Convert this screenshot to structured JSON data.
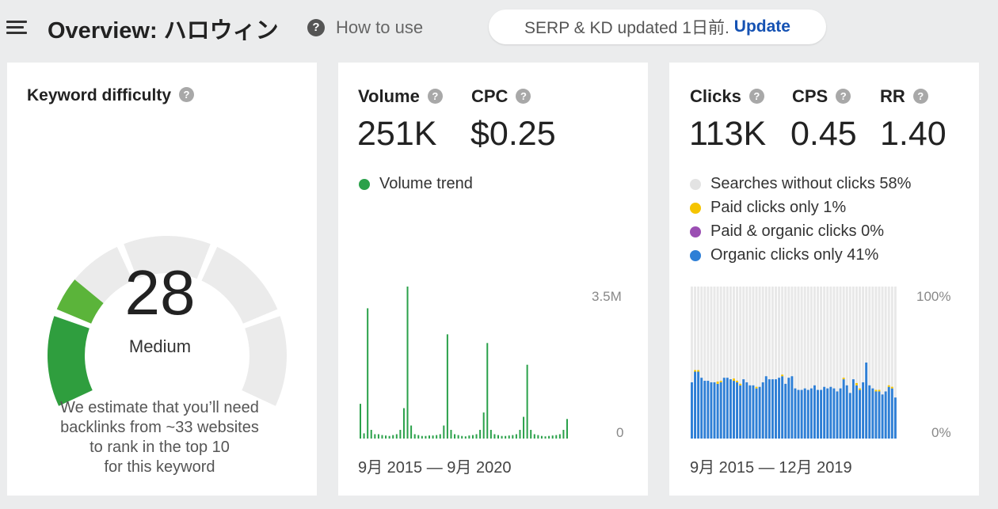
{
  "header": {
    "title": "Overview: ハロウィン",
    "help_label": "How to use",
    "help_icon": "question-icon",
    "update_status": "SERP & KD updated 1日前.",
    "update_label": "Update",
    "update_color": "#1552b3"
  },
  "kd": {
    "title": "Keyword difficulty",
    "score": "28",
    "level": "Medium",
    "score_value": 28,
    "gauge_fill_color": "#3aa045",
    "description": [
      "We estimate that you’ll need",
      "backlinks from ~33 websites",
      "to rank in the top 10",
      "for this keyword"
    ]
  },
  "volume": {
    "volume_label": "Volume",
    "volume_value": "251K",
    "cpc_label": "CPC",
    "cpc_value": "$0.25",
    "legend": "Volume trend",
    "legend_color": "#2aa14a",
    "y_max_label": "3.5M",
    "y_min_label": "0",
    "range": "9月 2015 — 9月 2020"
  },
  "clicks": {
    "clicks_label": "Clicks",
    "clicks_value": "113K",
    "cps_label": "CPS",
    "cps_value": "0.45",
    "rr_label": "RR",
    "rr_value": "1.40",
    "legend": [
      {
        "label": "Searches without clicks 58%",
        "color": "#e3e3e3"
      },
      {
        "label": "Paid clicks only 1%",
        "color": "#f5c400"
      },
      {
        "label": "Paid & organic clicks 0%",
        "color": "#9b4fb3"
      },
      {
        "label": "Organic clicks only 41%",
        "color": "#2e7fd6"
      }
    ],
    "y_max_label": "100%",
    "y_min_label": "0%",
    "range": "9月 2015 — 12月 2019"
  },
  "chart_data": [
    {
      "type": "bar",
      "series": [
        {
          "values": [
            0.8,
            0.12,
            3.0,
            0.2,
            0.1,
            0.1,
            0.08,
            0.07,
            0.06,
            0.08,
            0.1,
            0.2,
            0.7,
            3.5,
            0.3,
            0.1,
            0.08,
            0.06,
            0.06,
            0.07,
            0.07,
            0.08,
            0.1,
            0.3,
            2.4,
            0.2,
            0.1,
            0.08,
            0.06,
            0.05,
            0.07,
            0.08,
            0.1,
            0.2,
            0.6,
            2.2,
            0.2,
            0.1,
            0.08,
            0.06,
            0.06,
            0.07,
            0.08,
            0.1,
            0.2,
            0.5,
            1.7,
            0.2,
            0.1,
            0.08,
            0.06,
            0.05,
            0.06,
            0.07,
            0.08,
            0.1,
            0.2,
            0.45
          ]
        }
      ],
      "x_range": [
        "9月 2015",
        "9月 2020"
      ],
      "ylim": [
        0,
        3.5
      ],
      "ylabel_ticks": [
        "0",
        "3.5M"
      ]
    },
    {
      "type": "bar",
      "stacked": true,
      "series": [
        {
          "name": "Organic clicks only",
          "values": [
            0.37,
            0.44,
            0.44,
            0.4,
            0.38,
            0.38,
            0.37,
            0.37,
            0.36,
            0.37,
            0.4,
            0.4,
            0.39,
            0.38,
            0.37,
            0.35,
            0.39,
            0.37,
            0.35,
            0.35,
            0.33,
            0.34,
            0.37,
            0.41,
            0.39,
            0.39,
            0.39,
            0.4,
            0.41,
            0.36,
            0.4,
            0.41,
            0.33,
            0.32,
            0.32,
            0.33,
            0.32,
            0.33,
            0.35,
            0.32,
            0.32,
            0.34,
            0.33,
            0.34,
            0.33,
            0.31,
            0.33,
            0.39,
            0.35,
            0.3,
            0.39,
            0.35,
            0.32,
            0.37,
            0.5,
            0.35,
            0.33,
            0.31,
            0.31,
            0.29,
            0.31,
            0.34,
            0.33,
            0.27
          ]
        },
        {
          "name": "Paid clicks only",
          "values": [
            0,
            0.01,
            0.01,
            0,
            0,
            0,
            0,
            0,
            0.015,
            0.01,
            0,
            0,
            0,
            0.015,
            0.01,
            0.01,
            0,
            0,
            0,
            0,
            0.01,
            0,
            0,
            0,
            0,
            0,
            0,
            0,
            0.01,
            0,
            0,
            0,
            0,
            0,
            0,
            0,
            0,
            0,
            0,
            0,
            0,
            0,
            0,
            0,
            0,
            0,
            0,
            0.01,
            0,
            0,
            0,
            0.015,
            0.01,
            0,
            0,
            0,
            0,
            0.01,
            0.01,
            0,
            0,
            0.01,
            0.01,
            0
          ]
        },
        {
          "name": "Searches without clicks",
          "values": [
            0.63,
            0.55,
            0.55,
            0.6,
            0.62,
            0.62,
            0.63,
            0.63,
            0.625,
            0.62,
            0.6,
            0.6,
            0.61,
            0.605,
            0.62,
            0.64,
            0.61,
            0.63,
            0.65,
            0.65,
            0.66,
            0.66,
            0.63,
            0.59,
            0.61,
            0.61,
            0.61,
            0.6,
            0.58,
            0.64,
            0.6,
            0.59,
            0.67,
            0.68,
            0.68,
            0.67,
            0.68,
            0.67,
            0.65,
            0.68,
            0.68,
            0.66,
            0.67,
            0.66,
            0.67,
            0.69,
            0.67,
            0.6,
            0.65,
            0.7,
            0.61,
            0.635,
            0.67,
            0.63,
            0.5,
            0.65,
            0.67,
            0.68,
            0.68,
            0.71,
            0.69,
            0.65,
            0.66,
            0.73
          ]
        }
      ],
      "x_range": [
        "9月 2015",
        "12月 2019"
      ],
      "ylim": [
        0,
        1
      ],
      "ylabel_ticks": [
        "0%",
        "100%"
      ]
    }
  ]
}
